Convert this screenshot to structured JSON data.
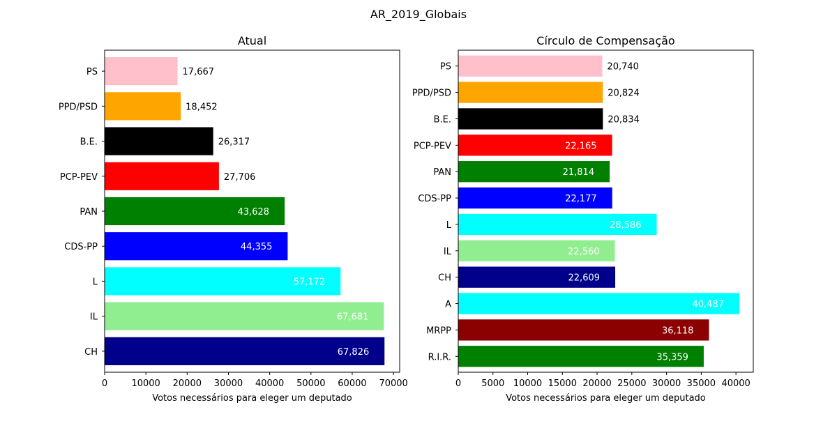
{
  "figure": {
    "title": "AR_2019_Globais"
  },
  "chart_data": [
    {
      "type": "bar",
      "orientation": "horizontal",
      "title": "Atual",
      "xlabel": "Votos necessários para eleger um deputado",
      "ylabel": "",
      "xlim": [
        0,
        71500
      ],
      "xticks": [
        0,
        10000,
        20000,
        30000,
        40000,
        50000,
        60000,
        70000
      ],
      "xtick_labels": [
        "0",
        "10000",
        "20000",
        "30000",
        "40000",
        "50000",
        "60000",
        "70000"
      ],
      "grid": false,
      "categories": [
        "PS",
        "PPD/PSD",
        "B.E.",
        "PCP-PEV",
        "PAN",
        "CDS-PP",
        "L",
        "IL",
        "CH"
      ],
      "values": [
        17667,
        18452,
        26317,
        27706,
        43628,
        44355,
        57172,
        67681,
        67826
      ],
      "value_labels": [
        "17,667",
        "18,452",
        "26,317",
        "27,706",
        "43,628",
        "44,355",
        "57,172",
        "67,681",
        "67,826"
      ],
      "colors": [
        "#ffc0cb",
        "#ffa500",
        "#000000",
        "#ff0000",
        "#008000",
        "#0000ff",
        "#00ffff",
        "#90ee90",
        "#00008b"
      ],
      "label_inside": [
        false,
        false,
        false,
        false,
        true,
        true,
        true,
        true,
        true
      ]
    },
    {
      "type": "bar",
      "orientation": "horizontal",
      "title": "Círculo de Compensação",
      "xlabel": "Votos necessários para eleger um deputado",
      "ylabel": "",
      "xlim": [
        0,
        42500
      ],
      "xticks": [
        0,
        5000,
        10000,
        15000,
        20000,
        25000,
        30000,
        35000,
        40000
      ],
      "xtick_labels": [
        "0",
        "5000",
        "10000",
        "15000",
        "20000",
        "25000",
        "30000",
        "35000",
        "40000"
      ],
      "grid": false,
      "categories": [
        "PS",
        "PPD/PSD",
        "B.E.",
        "PCP-PEV",
        "PAN",
        "CDS-PP",
        "L",
        "IL",
        "CH",
        "A",
        "MRPP",
        "R.I.R."
      ],
      "values": [
        20740,
        20824,
        20834,
        22165,
        21814,
        22177,
        28586,
        22560,
        22609,
        40487,
        36118,
        35359
      ],
      "value_labels": [
        "20,740",
        "20,824",
        "20,834",
        "22,165",
        "21,814",
        "22,177",
        "28,586",
        "22,560",
        "22,609",
        "40,487",
        "36,118",
        "35,359"
      ],
      "colors": [
        "#ffc0cb",
        "#ffa500",
        "#000000",
        "#ff0000",
        "#008000",
        "#0000ff",
        "#00ffff",
        "#90ee90",
        "#00008b",
        "#00ffff",
        "#8b0000",
        "#008000"
      ],
      "label_inside": [
        false,
        false,
        false,
        true,
        true,
        true,
        true,
        true,
        true,
        true,
        true,
        true
      ]
    }
  ]
}
